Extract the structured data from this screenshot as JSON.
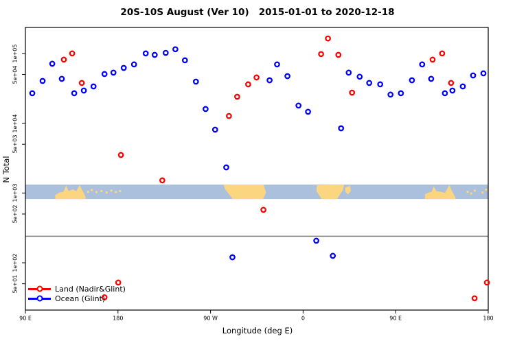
{
  "title": "20S-10S August (Ver 10)   2015-01-01 to 2020-12-18",
  "axes": {
    "x_label": "Longitude (deg E)",
    "y_label": "N Total",
    "x_ticks": [
      {
        "d": 0,
        "label": "90 E"
      },
      {
        "d": 90,
        "label": "180"
      },
      {
        "d": 180,
        "label": "90 W"
      },
      {
        "d": 270,
        "label": "0"
      },
      {
        "d": 360,
        "label": "90 E"
      },
      {
        "d": 450,
        "label": "180"
      }
    ],
    "y_ticks": [
      {
        "v": 100000,
        "label": "1e+05"
      },
      {
        "v": 50000,
        "label": "5e+04"
      },
      {
        "v": 10000,
        "label": "1e+04"
      },
      {
        "v": 5000,
        "label": "5e+03"
      },
      {
        "v": 1000,
        "label": "1e+03"
      },
      {
        "v": 500,
        "label": "5e+02"
      },
      {
        "v": 100,
        "label": "1e+02"
      },
      {
        "v": 50,
        "label": "5e+01"
      }
    ]
  },
  "legend": {
    "items": [
      {
        "label": "Land (Nadir&Glint)",
        "color": "#ff0000"
      },
      {
        "label": "Ocean (Glint)",
        "color": "#0000ff"
      }
    ]
  },
  "colors": {
    "land_series": "#ff0000",
    "ocean_series": "#0000ff",
    "map_ocean": "#aac0dd",
    "map_land": "#fcd581",
    "reference_line": "#808080",
    "frame": "#000000"
  },
  "chart_data": {
    "type": "scatter",
    "title": "20S-10S August (Ver 10)   2015-01-01 to 2020-12-18",
    "xlabel": "Longitude (deg E)",
    "ylabel": "N Total",
    "x_axis_note": "x stored as degrees east of 90E along wrapped axis (0..450)",
    "x_range": [
      0,
      450
    ],
    "y_scale": "log",
    "y_range": [
      21,
      236000
    ],
    "grid": false,
    "legend_position": "bottom-left inside plot",
    "reference_line_y": 240,
    "map_strip": {
      "y_top_value": 1320,
      "y_bottom_value": 820
    },
    "series": [
      {
        "name": "Land (Nadir&Glint)",
        "color": "#ff0000",
        "points": [
          [
            37.4,
            81600
          ],
          [
            45.5,
            100000
          ],
          [
            54.8,
            37800
          ],
          [
            76.9,
            32
          ],
          [
            90.3,
            52
          ],
          [
            92.9,
            3510
          ],
          [
            133.1,
            1520
          ],
          [
            197.9,
            12700
          ],
          [
            205.9,
            24000
          ],
          [
            216.6,
            36100
          ],
          [
            224.7,
            45300
          ],
          [
            231.4,
            573
          ],
          [
            287.5,
            98000
          ],
          [
            294.2,
            164000
          ],
          [
            304.3,
            95500
          ],
          [
            317.6,
            27500
          ],
          [
            395.9,
            81600
          ],
          [
            405.2,
            100000
          ],
          [
            413.9,
            37800
          ],
          [
            436.7,
            31
          ],
          [
            448.7,
            52
          ]
        ]
      },
      {
        "name": "Ocean (Glint)",
        "color": "#0000ff",
        "points": [
          [
            6.7,
            26900
          ],
          [
            16.7,
            40400
          ],
          [
            26.1,
            71300
          ],
          [
            35.4,
            43300
          ],
          [
            47.5,
            26900
          ],
          [
            56.8,
            29400
          ],
          [
            66.2,
            33700
          ],
          [
            76.9,
            50700
          ],
          [
            85.6,
            53100
          ],
          [
            95.6,
            62100
          ],
          [
            105.6,
            69700
          ],
          [
            117.0,
            100000
          ],
          [
            125.7,
            95500
          ],
          [
            136.4,
            102000
          ],
          [
            145.8,
            115000
          ],
          [
            155.1,
            79800
          ],
          [
            165.8,
            39500
          ],
          [
            175.2,
            16000
          ],
          [
            184.5,
            8090
          ],
          [
            195.3,
            2330
          ],
          [
            201.3,
            120
          ],
          [
            237.4,
            41300
          ],
          [
            244.7,
            69700
          ],
          [
            254.8,
            47300
          ],
          [
            265.5,
            17900
          ],
          [
            274.8,
            14600
          ],
          [
            282.8,
            207
          ],
          [
            298.9,
            126
          ],
          [
            306.9,
            8470
          ],
          [
            314.3,
            53100
          ],
          [
            325.0,
            46400
          ],
          [
            334.3,
            37800
          ],
          [
            345.0,
            36100
          ],
          [
            355.0,
            25700
          ],
          [
            365.1,
            26900
          ],
          [
            375.8,
            41300
          ],
          [
            385.8,
            69700
          ],
          [
            394.5,
            43300
          ],
          [
            407.9,
            26900
          ],
          [
            415.2,
            29400
          ],
          [
            425.3,
            33700
          ],
          [
            435.3,
            48400
          ],
          [
            445.3,
            51900
          ]
        ]
      }
    ],
    "land_polygons": [
      [
        [
          29,
          1
        ],
        [
          29,
          0.72
        ],
        [
          33,
          0.55
        ],
        [
          37,
          0.5
        ],
        [
          39.5,
          0.05
        ],
        [
          42,
          0.45
        ],
        [
          46,
          0.33
        ],
        [
          49.5,
          0.45
        ],
        [
          52.8,
          0.02
        ],
        [
          54.5,
          0.3
        ],
        [
          56.5,
          0.55
        ],
        [
          58.5,
          0.85
        ],
        [
          58.5,
          1
        ]
      ],
      [
        [
          193,
          0
        ],
        [
          231.5,
          0
        ],
        [
          234,
          0.55
        ],
        [
          231,
          1
        ],
        [
          201.5,
          1
        ],
        [
          194.5,
          0.35
        ],
        [
          193,
          0.12
        ]
      ],
      [
        [
          283.5,
          0.05
        ],
        [
          310,
          0
        ],
        [
          308.5,
          0.4
        ],
        [
          303,
          1
        ],
        [
          288,
          1
        ],
        [
          283,
          0.45
        ]
      ],
      [
        [
          311,
          0.2
        ],
        [
          315.5,
          0.08
        ],
        [
          316.5,
          0.45
        ],
        [
          313.5,
          0.68
        ],
        [
          311,
          0.5
        ]
      ],
      [
        [
          388.5,
          1
        ],
        [
          388.5,
          0.68
        ],
        [
          392,
          0.55
        ],
        [
          395,
          0.5
        ],
        [
          397,
          0.12
        ],
        [
          399.5,
          0.45
        ],
        [
          404,
          0.5
        ],
        [
          408,
          0.58
        ],
        [
          412.3,
          0.02
        ],
        [
          414,
          0.35
        ],
        [
          416,
          0.62
        ],
        [
          418,
          0.88
        ],
        [
          418,
          1
        ]
      ]
    ],
    "land_dots": [
      [
        61,
        0.5
      ],
      [
        64.5,
        0.38
      ],
      [
        69,
        0.52
      ],
      [
        74,
        0.45
      ],
      [
        79,
        0.55
      ],
      [
        83.5,
        0.42
      ],
      [
        88,
        0.52
      ],
      [
        92,
        0.45
      ],
      [
        430,
        0.5
      ],
      [
        433.5,
        0.62
      ],
      [
        437,
        0.42
      ],
      [
        444.5,
        0.55
      ],
      [
        448,
        0.35
      ]
    ]
  }
}
